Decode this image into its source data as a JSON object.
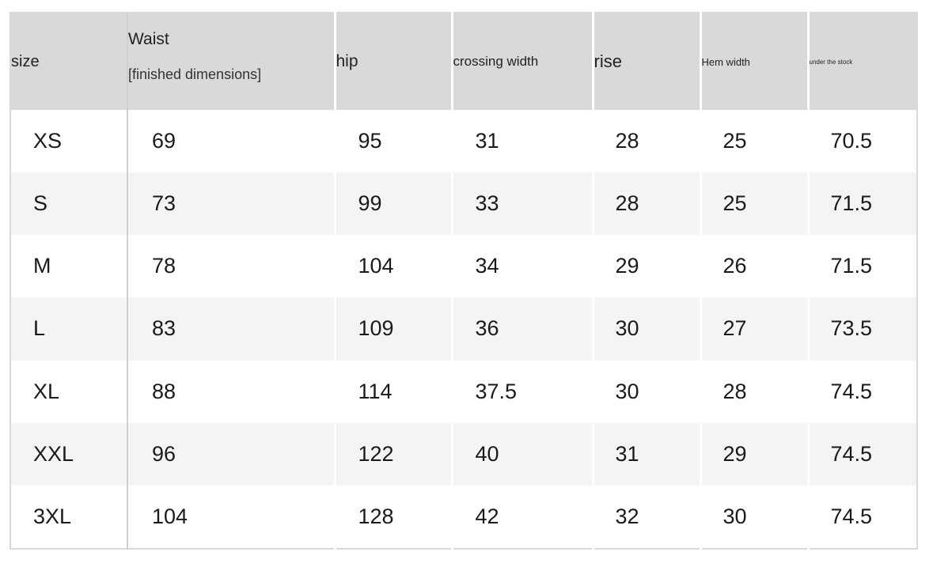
{
  "headers": {
    "size": "size",
    "waist_line1": "Waist",
    "waist_line2": "[finished dimensions]",
    "hip": "hip",
    "crossing_width": "crossing width",
    "rise": "rise",
    "hem_width": "Hem width",
    "under_the_stock": "under the stock"
  },
  "rows": [
    {
      "size": "XS",
      "waist": "69",
      "hip": "95",
      "crossing_width": "31",
      "rise": "28",
      "hem_width": "25",
      "under_the_stock": "70.5"
    },
    {
      "size": "S",
      "waist": "73",
      "hip": "99",
      "crossing_width": "33",
      "rise": "28",
      "hem_width": "25",
      "under_the_stock": "71.5"
    },
    {
      "size": "M",
      "waist": "78",
      "hip": "104",
      "crossing_width": "34",
      "rise": "29",
      "hem_width": "26",
      "under_the_stock": "71.5"
    },
    {
      "size": "L",
      "waist": "83",
      "hip": "109",
      "crossing_width": "36",
      "rise": "30",
      "hem_width": "27",
      "under_the_stock": "73.5"
    },
    {
      "size": "XL",
      "waist": "88",
      "hip": "114",
      "crossing_width": "37.5",
      "rise": "30",
      "hem_width": "28",
      "under_the_stock": "74.5"
    },
    {
      "size": "XXL",
      "waist": "96",
      "hip": "122",
      "crossing_width": "40",
      "rise": "31",
      "hem_width": "29",
      "under_the_stock": "74.5"
    },
    {
      "size": "3XL",
      "waist": "104",
      "hip": "128",
      "crossing_width": "42",
      "rise": "32",
      "hem_width": "30",
      "under_the_stock": "74.5"
    }
  ]
}
